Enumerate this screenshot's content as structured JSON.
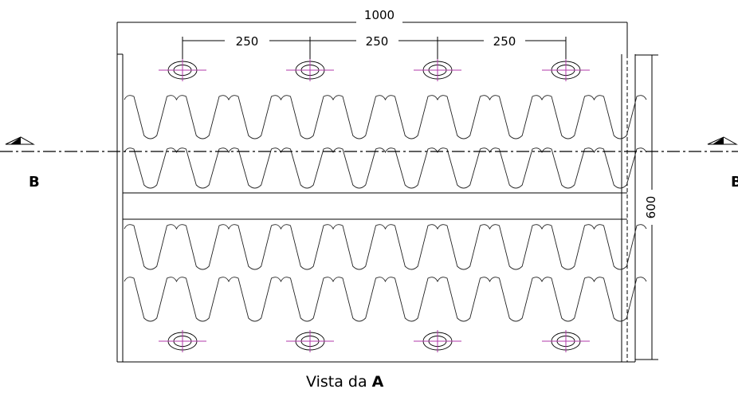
{
  "dimensions": {
    "overall_width": "1000",
    "hole_spacing": [
      "250",
      "250",
      "250"
    ],
    "overall_height": "600"
  },
  "section": {
    "left_label": "B",
    "right_label": "B"
  },
  "caption": {
    "prefix": "Vista da",
    "view": "A"
  },
  "colors": {
    "line": "#000000",
    "hole_centerline": "#b03aa8",
    "centerline": "#000000"
  }
}
